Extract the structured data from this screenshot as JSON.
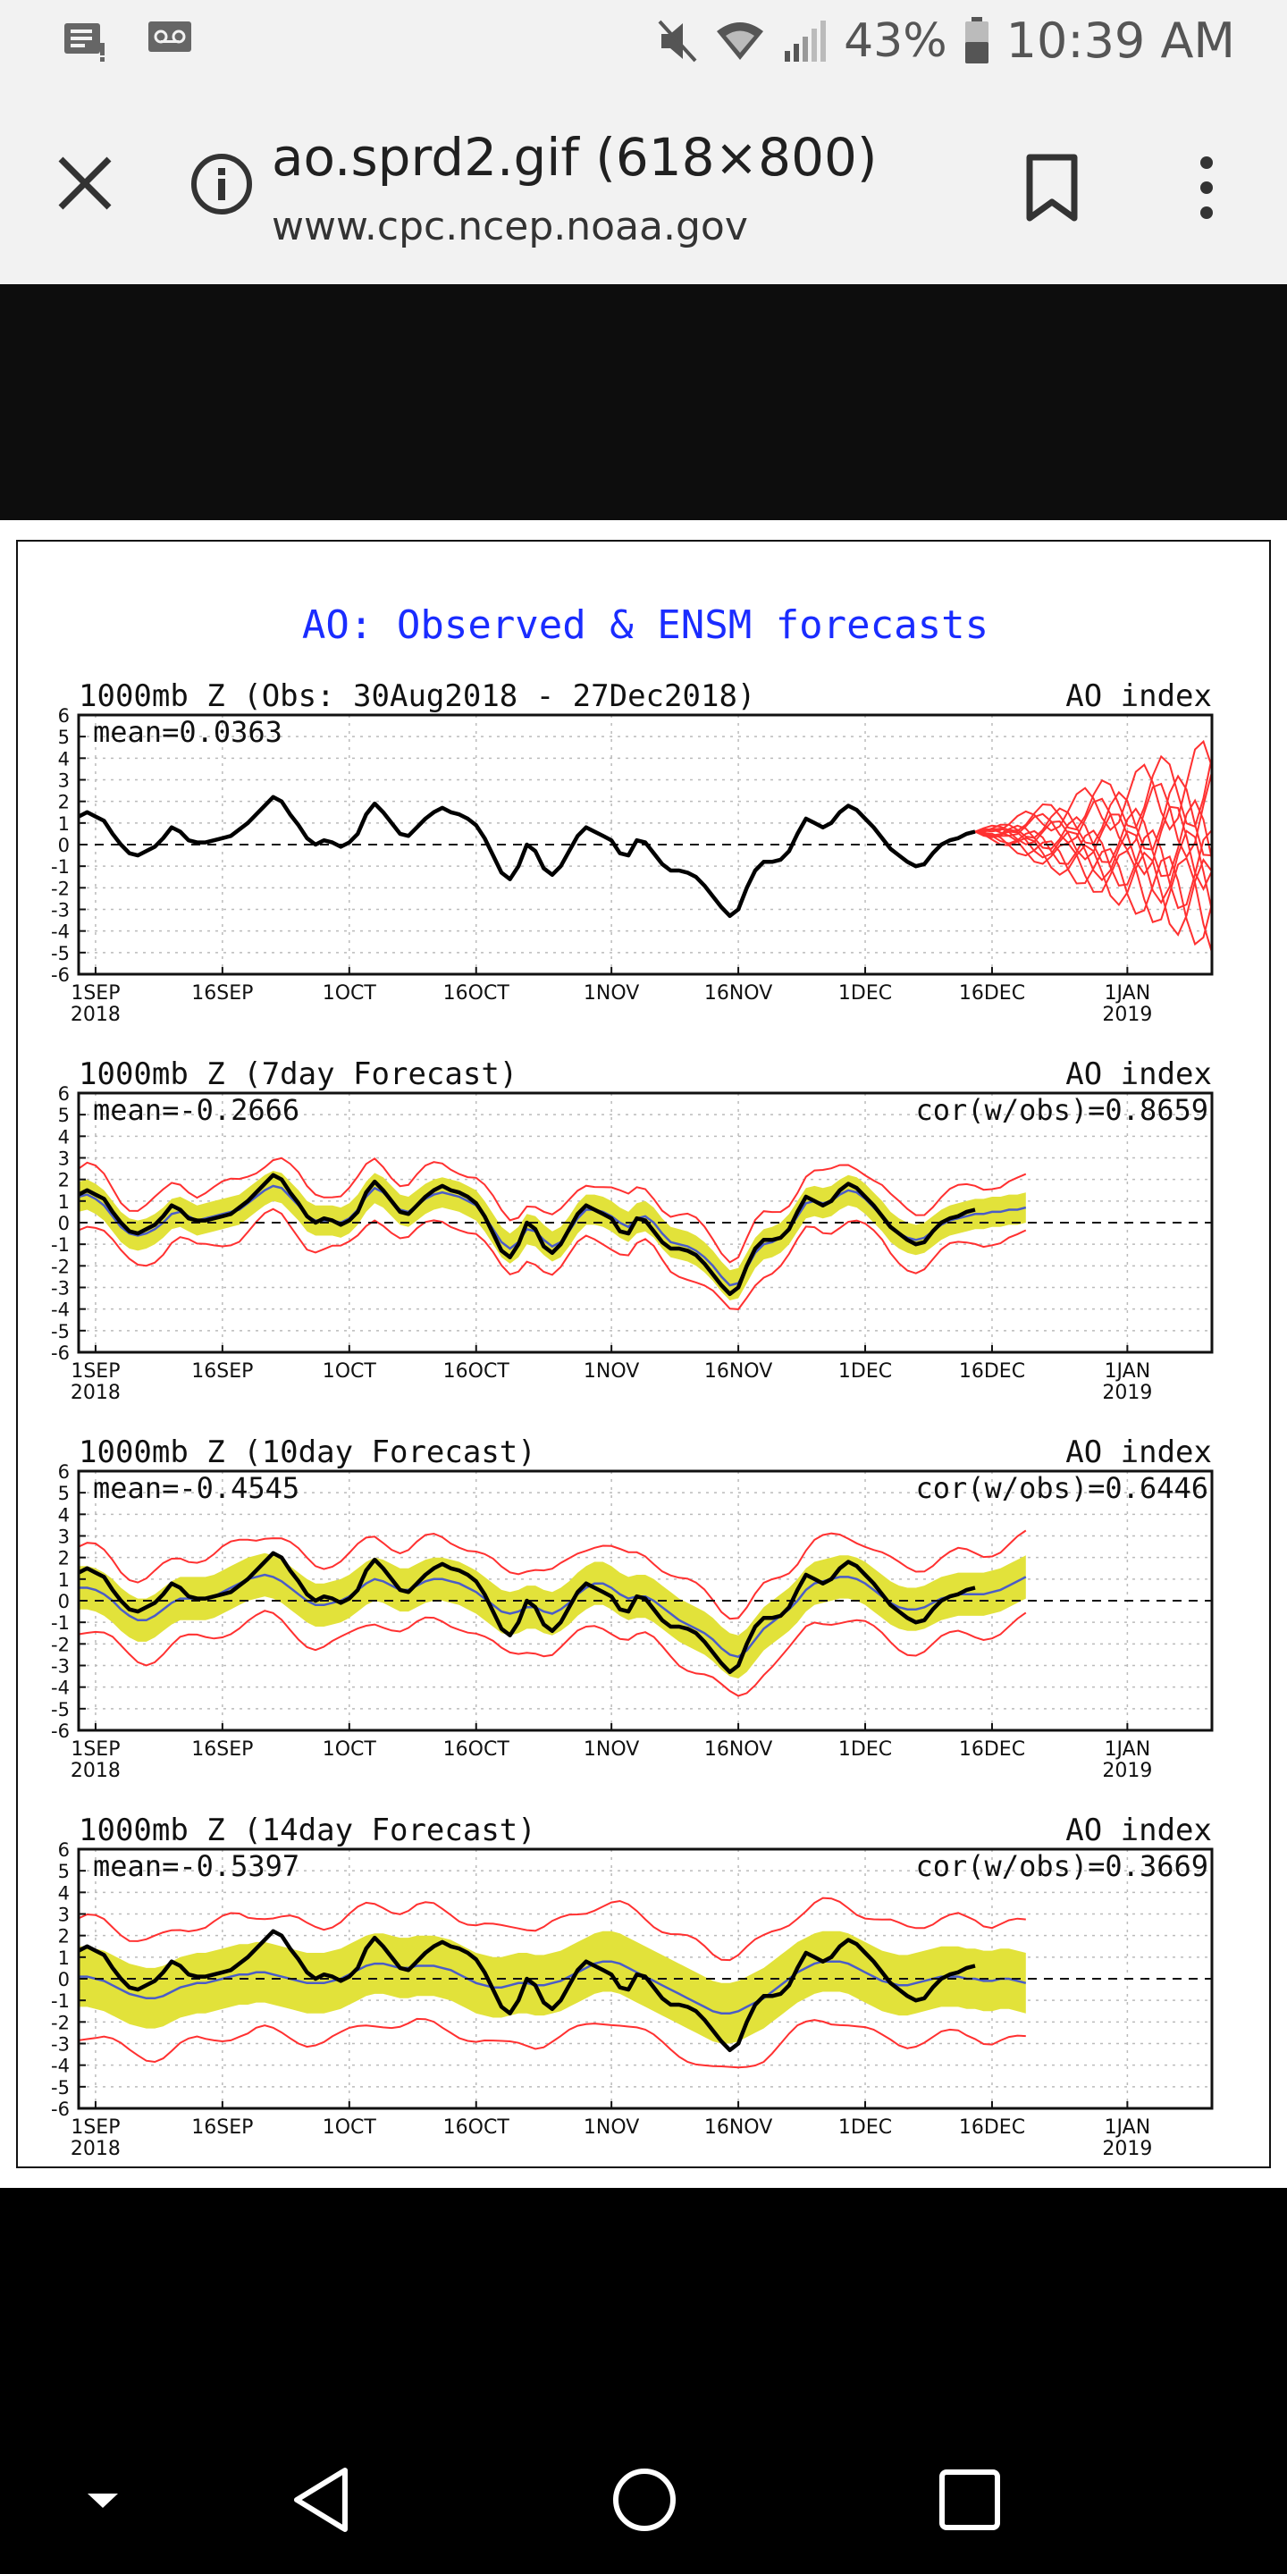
{
  "status_bar": {
    "battery_percent": "43%",
    "time": "10:39 AM",
    "icons": [
      "notification-icon",
      "voicemail-icon",
      "mute-icon",
      "wifi-icon",
      "signal-icon",
      "battery-icon"
    ]
  },
  "browser": {
    "title": "ao.sprd2.gif (618×800)",
    "url": "www.cpc.ncep.noaa.gov",
    "icons": [
      "close-icon",
      "info-icon",
      "bookmark-icon",
      "more-vert-icon"
    ]
  },
  "figure": {
    "main_title": "AO: Observed & ENSM forecasts",
    "x_tick_labels": [
      "1SEP",
      "16SEP",
      "1OCT",
      "16OCT",
      "1NOV",
      "16NOV",
      "1DEC",
      "16DEC",
      "1JAN"
    ],
    "year_start": "2018",
    "year_end": "2019",
    "y_tick_labels": [
      "6",
      "5",
      "4",
      "3",
      "2",
      "1",
      "0",
      "-1",
      "-2",
      "-3",
      "-4",
      "-5",
      "-6"
    ],
    "colors": {
      "title": "#1a2cff",
      "observed": "#000000",
      "ensemble_mean": "#4a5cc8",
      "spread": "#e2e23a",
      "members": "#ff3030"
    }
  },
  "chart_data": [
    {
      "type": "line",
      "title": "1000mb Z (Obs: 30Aug2018 - 27Dec2018)",
      "right_title": "AO index",
      "mean_label": "mean=0.0363",
      "cor_label": "",
      "ylim": [
        -6,
        6
      ],
      "x_start": "2018-08-30",
      "x_end": "2019-01-11",
      "grid": true,
      "series": [
        {
          "name": "",
          "dates_range": [
            "2018-08-30",
            "2018-12-27"
          ],
          "values": [
            1.3,
            1.5,
            1.3,
            1.1,
            0.5,
            0.0,
            -0.4,
            -0.5,
            -0.3,
            -0.1,
            0.3,
            0.8,
            0.6,
            0.2,
            0.1,
            0.1,
            0.2,
            0.3,
            0.4,
            0.7,
            1.0,
            1.4,
            1.8,
            2.2,
            2.0,
            1.4,
            0.9,
            0.3,
            0.0,
            0.2,
            0.1,
            -0.1,
            0.1,
            0.5,
            1.4,
            1.9,
            1.5,
            1.0,
            0.5,
            0.4,
            0.8,
            1.2,
            1.5,
            1.7,
            1.5,
            1.4,
            1.2,
            0.9,
            0.3,
            -0.5,
            -1.3,
            -1.6,
            -1.0,
            0.0,
            -0.3,
            -1.1,
            -1.4,
            -1.0,
            -0.3,
            0.4,
            0.8,
            0.6,
            0.4,
            0.2,
            -0.4,
            -0.5,
            0.2,
            0.1,
            -0.4,
            -0.9,
            -1.2,
            -1.2,
            -1.3,
            -1.5,
            -1.9,
            -2.4,
            -2.9,
            -3.3,
            -3.0,
            -2.0,
            -1.2,
            -0.8,
            -0.8,
            -0.7,
            -0.3,
            0.5,
            1.2,
            1.0,
            0.8,
            1.0,
            1.5,
            1.8,
            1.6,
            1.2,
            0.8,
            0.3,
            -0.2,
            -0.5,
            -0.8,
            -1.0,
            -0.9,
            -0.4,
            0.0,
            0.2,
            0.3,
            0.5,
            0.6
          ]
        }
      ],
      "forecast_members_count": 11
    },
    {
      "type": "line",
      "title": "1000mb Z (7day Forecast)",
      "right_title": "AO index",
      "mean_label": "mean=-0.2666",
      "cor_label": "cor(w/obs)=0.8659",
      "ylim": [
        -6,
        6
      ],
      "x_start": "2018-08-30",
      "x_end": "2019-01-11",
      "grid": true,
      "forecast_values": [
        1.2,
        1.3,
        1.1,
        0.8,
        0.3,
        -0.2,
        -0.5,
        -0.6,
        -0.5,
        -0.3,
        0.0,
        0.4,
        0.5,
        0.3,
        0.1,
        0.2,
        0.3,
        0.4,
        0.5,
        0.6,
        0.9,
        1.2,
        1.5,
        1.7,
        1.6,
        1.2,
        0.8,
        0.3,
        0.1,
        0.1,
        0.1,
        0.0,
        0.2,
        0.6,
        1.2,
        1.6,
        1.4,
        1.0,
        0.6,
        0.5,
        0.8,
        1.1,
        1.3,
        1.4,
        1.3,
        1.2,
        1.0,
        0.8,
        0.3,
        -0.3,
        -0.9,
        -1.2,
        -0.9,
        -0.3,
        -0.4,
        -0.8,
        -1.1,
        -0.9,
        -0.4,
        0.2,
        0.6,
        0.6,
        0.5,
        0.3,
        0.0,
        -0.2,
        0.2,
        0.3,
        0.0,
        -0.5,
        -0.9,
        -1.0,
        -1.1,
        -1.3,
        -1.6,
        -2.0,
        -2.5,
        -2.9,
        -2.8,
        -2.1,
        -1.4,
        -1.0,
        -0.9,
        -0.7,
        -0.3,
        0.3,
        0.9,
        1.0,
        0.9,
        1.0,
        1.3,
        1.5,
        1.4,
        1.1,
        0.7,
        0.3,
        -0.2,
        -0.5,
        -0.7,
        -0.8,
        -0.7,
        -0.4,
        -0.1,
        0.1,
        0.2,
        0.3,
        0.4,
        0.4,
        0.5,
        0.5,
        0.6,
        0.6,
        0.7
      ],
      "spread": 0.7,
      "member_spread": 1.3
    },
    {
      "type": "line",
      "title": "1000mb Z (10day Forecast)",
      "right_title": "AO index",
      "mean_label": "mean=-0.4545",
      "cor_label": "cor(w/obs)=0.6446",
      "ylim": [
        -6,
        6
      ],
      "x_start": "2018-08-30",
      "x_end": "2019-01-11",
      "grid": true,
      "forecast_values": [
        0.6,
        0.6,
        0.5,
        0.3,
        0.0,
        -0.4,
        -0.7,
        -0.9,
        -0.9,
        -0.7,
        -0.4,
        -0.1,
        0.1,
        0.1,
        0.1,
        0.1,
        0.2,
        0.4,
        0.6,
        0.8,
        1.0,
        1.1,
        1.2,
        1.1,
        0.9,
        0.6,
        0.3,
        0.0,
        -0.2,
        -0.2,
        -0.1,
        0.0,
        0.2,
        0.5,
        0.8,
        1.0,
        0.9,
        0.7,
        0.5,
        0.5,
        0.7,
        0.9,
        1.0,
        1.0,
        0.9,
        0.8,
        0.6,
        0.4,
        0.1,
        -0.2,
        -0.5,
        -0.6,
        -0.5,
        -0.3,
        -0.3,
        -0.5,
        -0.6,
        -0.4,
        -0.1,
        0.3,
        0.6,
        0.8,
        0.8,
        0.6,
        0.3,
        0.1,
        0.2,
        0.2,
        0.0,
        -0.3,
        -0.6,
        -0.9,
        -1.1,
        -1.3,
        -1.5,
        -1.8,
        -2.2,
        -2.5,
        -2.6,
        -2.3,
        -1.8,
        -1.3,
        -1.0,
        -0.7,
        -0.4,
        0.0,
        0.5,
        0.8,
        0.9,
        1.0,
        1.1,
        1.1,
        1.0,
        0.8,
        0.5,
        0.2,
        -0.1,
        -0.3,
        -0.4,
        -0.4,
        -0.3,
        -0.1,
        0.1,
        0.2,
        0.3,
        0.3,
        0.3,
        0.3,
        0.4,
        0.5,
        0.7,
        0.9,
        1.1
      ],
      "spread": 1.0,
      "member_spread": 1.9
    },
    {
      "type": "line",
      "title": "1000mb Z (14day Forecast)",
      "right_title": "AO index",
      "mean_label": "mean=-0.5397",
      "cor_label": "cor(w/obs)=0.3669",
      "ylim": [
        -6,
        6
      ],
      "x_start": "2018-08-30",
      "x_end": "2019-01-11",
      "grid": true,
      "forecast_values": [
        0.1,
        0.1,
        0.0,
        -0.1,
        -0.3,
        -0.5,
        -0.7,
        -0.8,
        -0.9,
        -0.9,
        -0.8,
        -0.6,
        -0.4,
        -0.3,
        -0.2,
        -0.2,
        -0.1,
        0.0,
        0.1,
        0.2,
        0.2,
        0.3,
        0.3,
        0.2,
        0.1,
        0.0,
        -0.1,
        -0.2,
        -0.2,
        -0.2,
        -0.1,
        0.0,
        0.2,
        0.4,
        0.6,
        0.7,
        0.7,
        0.6,
        0.5,
        0.5,
        0.6,
        0.6,
        0.6,
        0.5,
        0.4,
        0.2,
        0.0,
        -0.2,
        -0.3,
        -0.4,
        -0.4,
        -0.3,
        -0.2,
        -0.2,
        -0.3,
        -0.3,
        -0.2,
        -0.1,
        0.1,
        0.3,
        0.5,
        0.7,
        0.8,
        0.8,
        0.7,
        0.5,
        0.3,
        0.1,
        -0.1,
        -0.3,
        -0.5,
        -0.7,
        -0.9,
        -1.1,
        -1.3,
        -1.5,
        -1.6,
        -1.6,
        -1.5,
        -1.3,
        -1.1,
        -0.9,
        -0.6,
        -0.3,
        0.0,
        0.3,
        0.5,
        0.7,
        0.8,
        0.8,
        0.8,
        0.7,
        0.5,
        0.3,
        0.1,
        -0.1,
        -0.2,
        -0.3,
        -0.3,
        -0.2,
        -0.1,
        0.0,
        0.1,
        0.1,
        0.1,
        0.0,
        0.0,
        -0.1,
        -0.1,
        0.0,
        0.0,
        -0.1,
        -0.2
      ],
      "spread": 1.4,
      "member_spread": 2.7
    }
  ]
}
